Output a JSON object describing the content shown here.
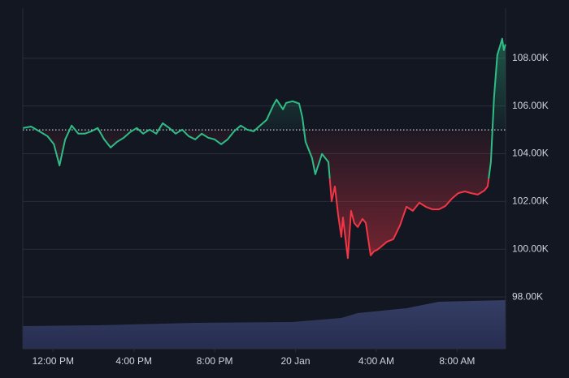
{
  "chart_data": {
    "type": "line",
    "x": [
      10.51,
      10.91,
      11.32,
      11.72,
      12.04,
      12.32,
      12.6,
      12.92,
      13.25,
      13.57,
      13.89,
      14.21,
      14.53,
      14.85,
      15.17,
      15.5,
      15.82,
      16.14,
      16.46,
      16.78,
      17.11,
      17.43,
      17.75,
      18.07,
      18.39,
      18.71,
      19.04,
      19.36,
      19.68,
      20.0,
      20.32,
      20.64,
      20.96,
      21.29,
      21.61,
      21.93,
      22.25,
      22.57,
      22.9,
      23.06,
      23.38,
      23.54,
      23.86,
      24.18,
      24.34,
      24.5,
      24.82,
      24.98,
      25.31,
      25.63,
      25.79,
      25.95,
      26.11,
      26.27,
      26.35,
      26.59,
      26.75,
      26.91,
      27.08,
      27.32,
      27.48,
      27.72,
      27.88,
      28.04,
      28.2,
      28.52,
      28.84,
      29.17,
      29.49,
      29.81,
      30.13,
      30.45,
      30.77,
      31.1,
      31.42,
      31.74,
      32.06,
      32.38,
      32.7,
      33.02,
      33.35,
      33.51,
      33.67,
      33.83,
      33.99,
      34.15,
      34.23,
      34.31,
      34.39
    ],
    "values": [
      105080,
      105140,
      104940,
      104740,
      104400,
      103510,
      104600,
      105180,
      104840,
      104840,
      104940,
      105080,
      104600,
      104260,
      104500,
      104670,
      104910,
      105080,
      104840,
      105010,
      104840,
      105280,
      105080,
      104840,
      105010,
      104740,
      104600,
      104840,
      104670,
      104600,
      104400,
      104600,
      104940,
      105180,
      105010,
      104940,
      105180,
      105420,
      106030,
      106270,
      105860,
      106130,
      106200,
      106100,
      105520,
      104500,
      103820,
      103140,
      103990,
      103650,
      102010,
      102630,
      101440,
      100520,
      101330,
      99630,
      101610,
      101100,
      100930,
      101270,
      101100,
      99740,
      99910,
      99970,
      100080,
      100310,
      100420,
      100990,
      101780,
      101610,
      101950,
      101780,
      101670,
      101670,
      101810,
      102120,
      102350,
      102420,
      102350,
      102290,
      102460,
      102630,
      103650,
      106370,
      108140,
      108580,
      108820,
      108340,
      108580
    ],
    "baseline": 105000,
    "up_color": "#2ebd85",
    "down_color": "#f23645",
    "xlim": [
      10.5,
      34.4
    ],
    "xticks": [
      {
        "value": 12,
        "label": "12:00 PM"
      },
      {
        "value": 16,
        "label": "4:00 PM"
      },
      {
        "value": 20,
        "label": "8:00 PM"
      },
      {
        "value": 24,
        "label": "20 Jan"
      },
      {
        "value": 28,
        "label": "4:00 AM"
      },
      {
        "value": 32,
        "label": "8:00 AM"
      }
    ],
    "ylim": [
      95830,
      110100
    ],
    "yticks": [
      {
        "value": 98000,
        "label": "98.00K"
      },
      {
        "value": 100000,
        "label": "100.00K"
      },
      {
        "value": 102000,
        "label": "102.00K"
      },
      {
        "value": 104000,
        "label": "104.00K"
      },
      {
        "value": 106000,
        "label": "106.00K"
      },
      {
        "value": 108000,
        "label": "108.00K"
      }
    ],
    "grid": true
  }
}
